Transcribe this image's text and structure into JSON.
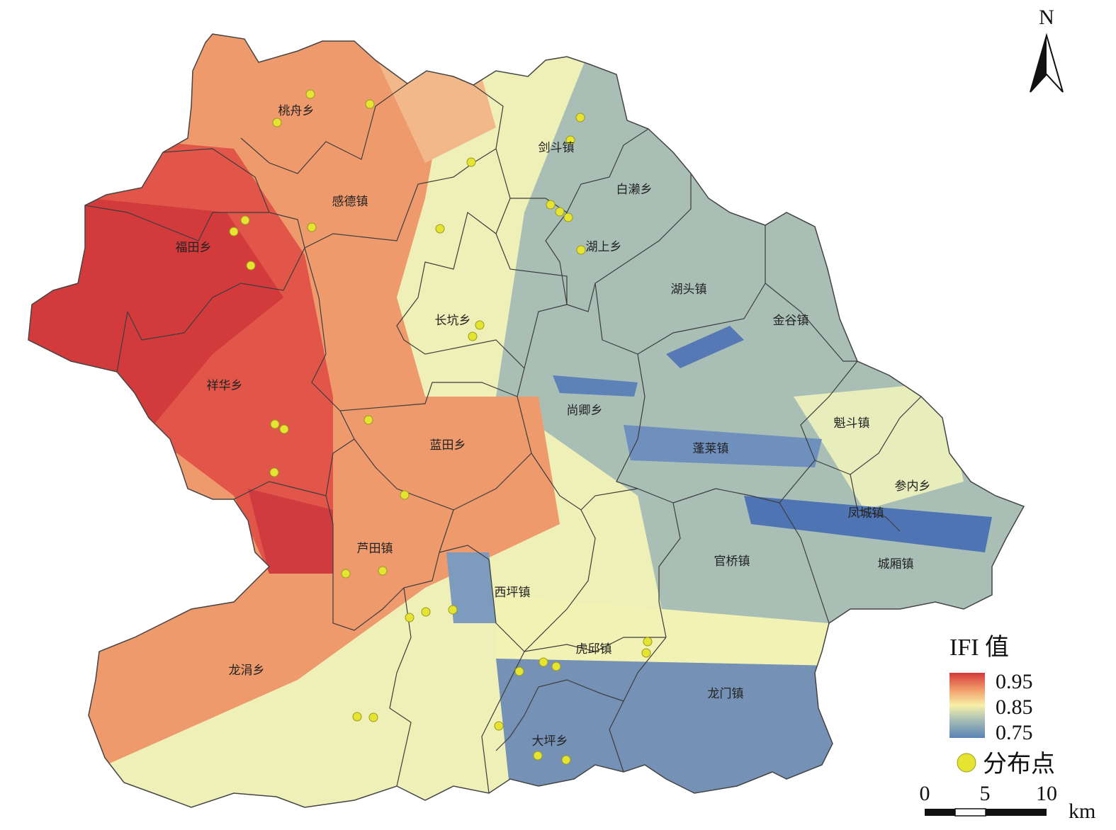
{
  "north_label": "N",
  "legend": {
    "title": "IFI 值",
    "max_label": "0.95",
    "mid_label": "0.85",
    "min_label": "0.75",
    "colors": [
      "#d33a3a",
      "#f3a36f",
      "#f7f1a8",
      "#a9bfb6",
      "#5a82b6"
    ],
    "points_label": "分布点",
    "point_color": "#e4e431"
  },
  "scale": {
    "t0": "0",
    "t1": "5",
    "t2": "10",
    "unit": "km"
  },
  "places": {
    "taozhou": "桃舟乡",
    "jiandou": "剑斗镇",
    "gande": "感德镇",
    "bailai": "白濑乡",
    "futian": "福田乡",
    "hushang": "湖上乡",
    "hutou": "湖头镇",
    "jingu": "金谷镇",
    "changkeng": "长坑乡",
    "xianghua": "祥华乡",
    "shangqing": "尚卿乡",
    "kuidou": "魁斗镇",
    "lantian": "蓝田乡",
    "penglai": "蓬莱镇",
    "cannei": "参内乡",
    "fengcheng": "凤城镇",
    "lutian": "芦田镇",
    "guanqiao": "官桥镇",
    "chengxiang": "城厢镇",
    "xiping": "西坪镇",
    "huqiu": "虎邱镇",
    "longjuan": "龙涓乡",
    "longmen": "龙门镇",
    "daping": "大坪乡"
  }
}
